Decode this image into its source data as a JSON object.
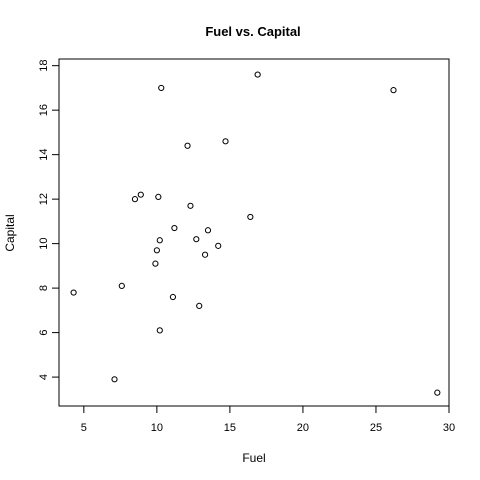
{
  "chart_data": {
    "type": "scatter",
    "title": "Fuel vs. Capital",
    "xlabel": "Fuel",
    "ylabel": "Capital",
    "xlim": [
      3.3,
      30.0
    ],
    "ylim": [
      2.7,
      18.3
    ],
    "xticks": [
      5,
      10,
      15,
      20,
      25,
      30
    ],
    "yticks": [
      4,
      6,
      8,
      10,
      12,
      14,
      16,
      18
    ],
    "grid": false,
    "legend": "none",
    "marker": "open-circle",
    "points": [
      {
        "x": 4.3,
        "y": 7.8
      },
      {
        "x": 7.1,
        "y": 3.9
      },
      {
        "x": 7.6,
        "y": 8.1
      },
      {
        "x": 8.5,
        "y": 12.0
      },
      {
        "x": 8.9,
        "y": 12.2
      },
      {
        "x": 9.9,
        "y": 9.1
      },
      {
        "x": 10.0,
        "y": 9.7
      },
      {
        "x": 10.1,
        "y": 12.1
      },
      {
        "x": 10.2,
        "y": 10.15
      },
      {
        "x": 10.2,
        "y": 6.1
      },
      {
        "x": 10.3,
        "y": 17.0
      },
      {
        "x": 11.1,
        "y": 7.6
      },
      {
        "x": 11.2,
        "y": 10.7
      },
      {
        "x": 12.1,
        "y": 14.4
      },
      {
        "x": 12.3,
        "y": 11.7
      },
      {
        "x": 12.7,
        "y": 10.2
      },
      {
        "x": 12.9,
        "y": 7.2
      },
      {
        "x": 13.3,
        "y": 9.5
      },
      {
        "x": 13.5,
        "y": 10.6
      },
      {
        "x": 14.2,
        "y": 9.9
      },
      {
        "x": 14.7,
        "y": 14.6
      },
      {
        "x": 16.4,
        "y": 11.2
      },
      {
        "x": 16.9,
        "y": 17.6
      },
      {
        "x": 26.2,
        "y": 16.9
      },
      {
        "x": 29.2,
        "y": 3.3
      }
    ]
  }
}
